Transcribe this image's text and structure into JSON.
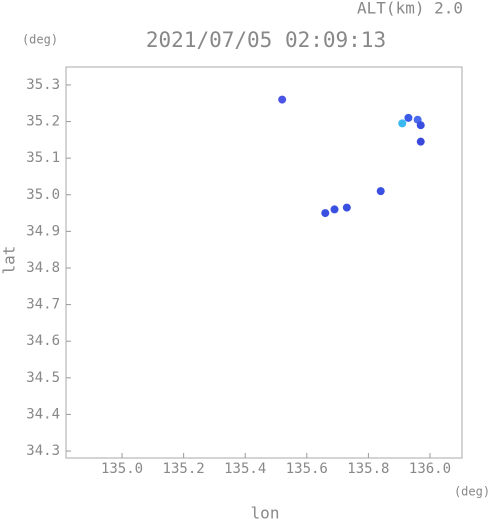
{
  "chart_data": {
    "type": "scatter",
    "title": "2021/07/05 02:09:13",
    "subtitle": "ALT(km) 2.0",
    "x_label": "lon",
    "y_label": "lat",
    "x_unit": "(deg)",
    "y_unit": "(deg)",
    "x": [
      135.52,
      135.91,
      135.93,
      135.96,
      135.97,
      135.97,
      135.84,
      135.73,
      135.69,
      135.66
    ],
    "values": [
      35.26,
      35.195,
      35.21,
      35.205,
      35.19,
      35.145,
      35.01,
      34.965,
      34.96,
      34.95
    ],
    "colors": [
      "#4a55e6",
      "#3ab8f0",
      "#3a5ae8",
      "#4a6af0",
      "#3a4ee0",
      "#3a48dc",
      "#3a50e0",
      "#3a50e0",
      "#3a50e0",
      "#3a50e0"
    ],
    "xlim": [
      134.818,
      136.104
    ],
    "ylim": [
      34.281,
      35.349
    ],
    "xticks": [
      {
        "value": 135.0,
        "label": "135.0"
      },
      135.2,
      135.4,
      135.6,
      135.8,
      {
        "value": 136.0,
        "label": "136.0"
      }
    ],
    "yticks": [
      34.3,
      34.4,
      34.5,
      34.6,
      34.7,
      34.8,
      34.9,
      {
        "value": 35.0,
        "label": "35.0"
      },
      35.1,
      35.2,
      35.3
    ]
  }
}
